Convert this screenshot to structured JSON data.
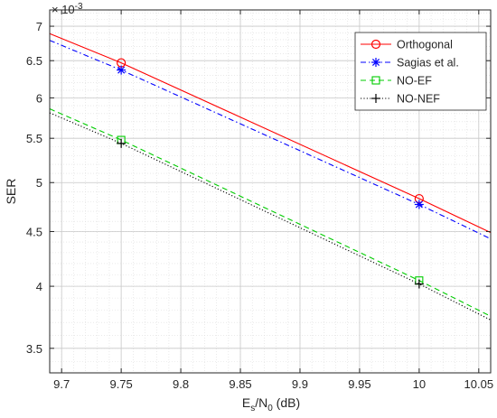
{
  "chart_data": {
    "type": "line",
    "xlabel": {
      "main": "E",
      "sub1": "s",
      "mid": "/N",
      "sub2": "0",
      "suffix": " (dB)"
    },
    "ylabel": "SER",
    "y_multiplier": {
      "base": "× 10",
      "exp": "-3"
    },
    "xlim": [
      9.69,
      10.06
    ],
    "ylim": [
      0.00332,
      0.00725
    ],
    "y_scale": "log",
    "grid": true,
    "minor_grid": true,
    "legend_position": "top-right",
    "x_ticks": [
      9.7,
      9.75,
      9.8,
      9.85,
      9.9,
      9.95,
      10,
      10.05
    ],
    "x_tick_labels": [
      "9.7",
      "9.75",
      "9.8",
      "9.85",
      "9.9",
      "9.95",
      "10",
      "10.05"
    ],
    "y_ticks": [
      0.0035,
      0.004,
      0.0045,
      0.005,
      0.0055,
      0.006,
      0.0065,
      0.007
    ],
    "y_tick_labels": [
      "3.5",
      "4",
      "4.5",
      "5",
      "5.5",
      "6",
      "6.5",
      "7"
    ],
    "series": [
      {
        "name": "Orthogonal",
        "color": "#ff0000",
        "dash": "solid",
        "marker": "circle",
        "x": [
          9.69,
          9.75,
          10,
          10.06
        ],
        "y": [
          0.00689,
          0.00647,
          0.00483,
          0.00449
        ]
      },
      {
        "name": "Sagias et al.",
        "color": "#0000ff",
        "dash": "dashdot",
        "marker": "asterisk",
        "x": [
          9.69,
          9.75,
          10,
          10.06
        ],
        "y": [
          0.00679,
          0.00637,
          0.00477,
          0.00443
        ]
      },
      {
        "name": "NO-EF",
        "color": "#00cc00",
        "dash": "dashed",
        "marker": "square",
        "x": [
          9.69,
          9.75,
          10,
          10.06
        ],
        "y": [
          0.00586,
          0.00548,
          0.00405,
          0.00375
        ]
      },
      {
        "name": "NO-NEF",
        "color": "#000000",
        "dash": "dotted",
        "marker": "plus",
        "x": [
          9.69,
          9.75,
          10,
          10.06
        ],
        "y": [
          0.00581,
          0.00544,
          0.00402,
          0.00372
        ]
      }
    ],
    "marker_x": [
      9.75,
      10
    ]
  }
}
